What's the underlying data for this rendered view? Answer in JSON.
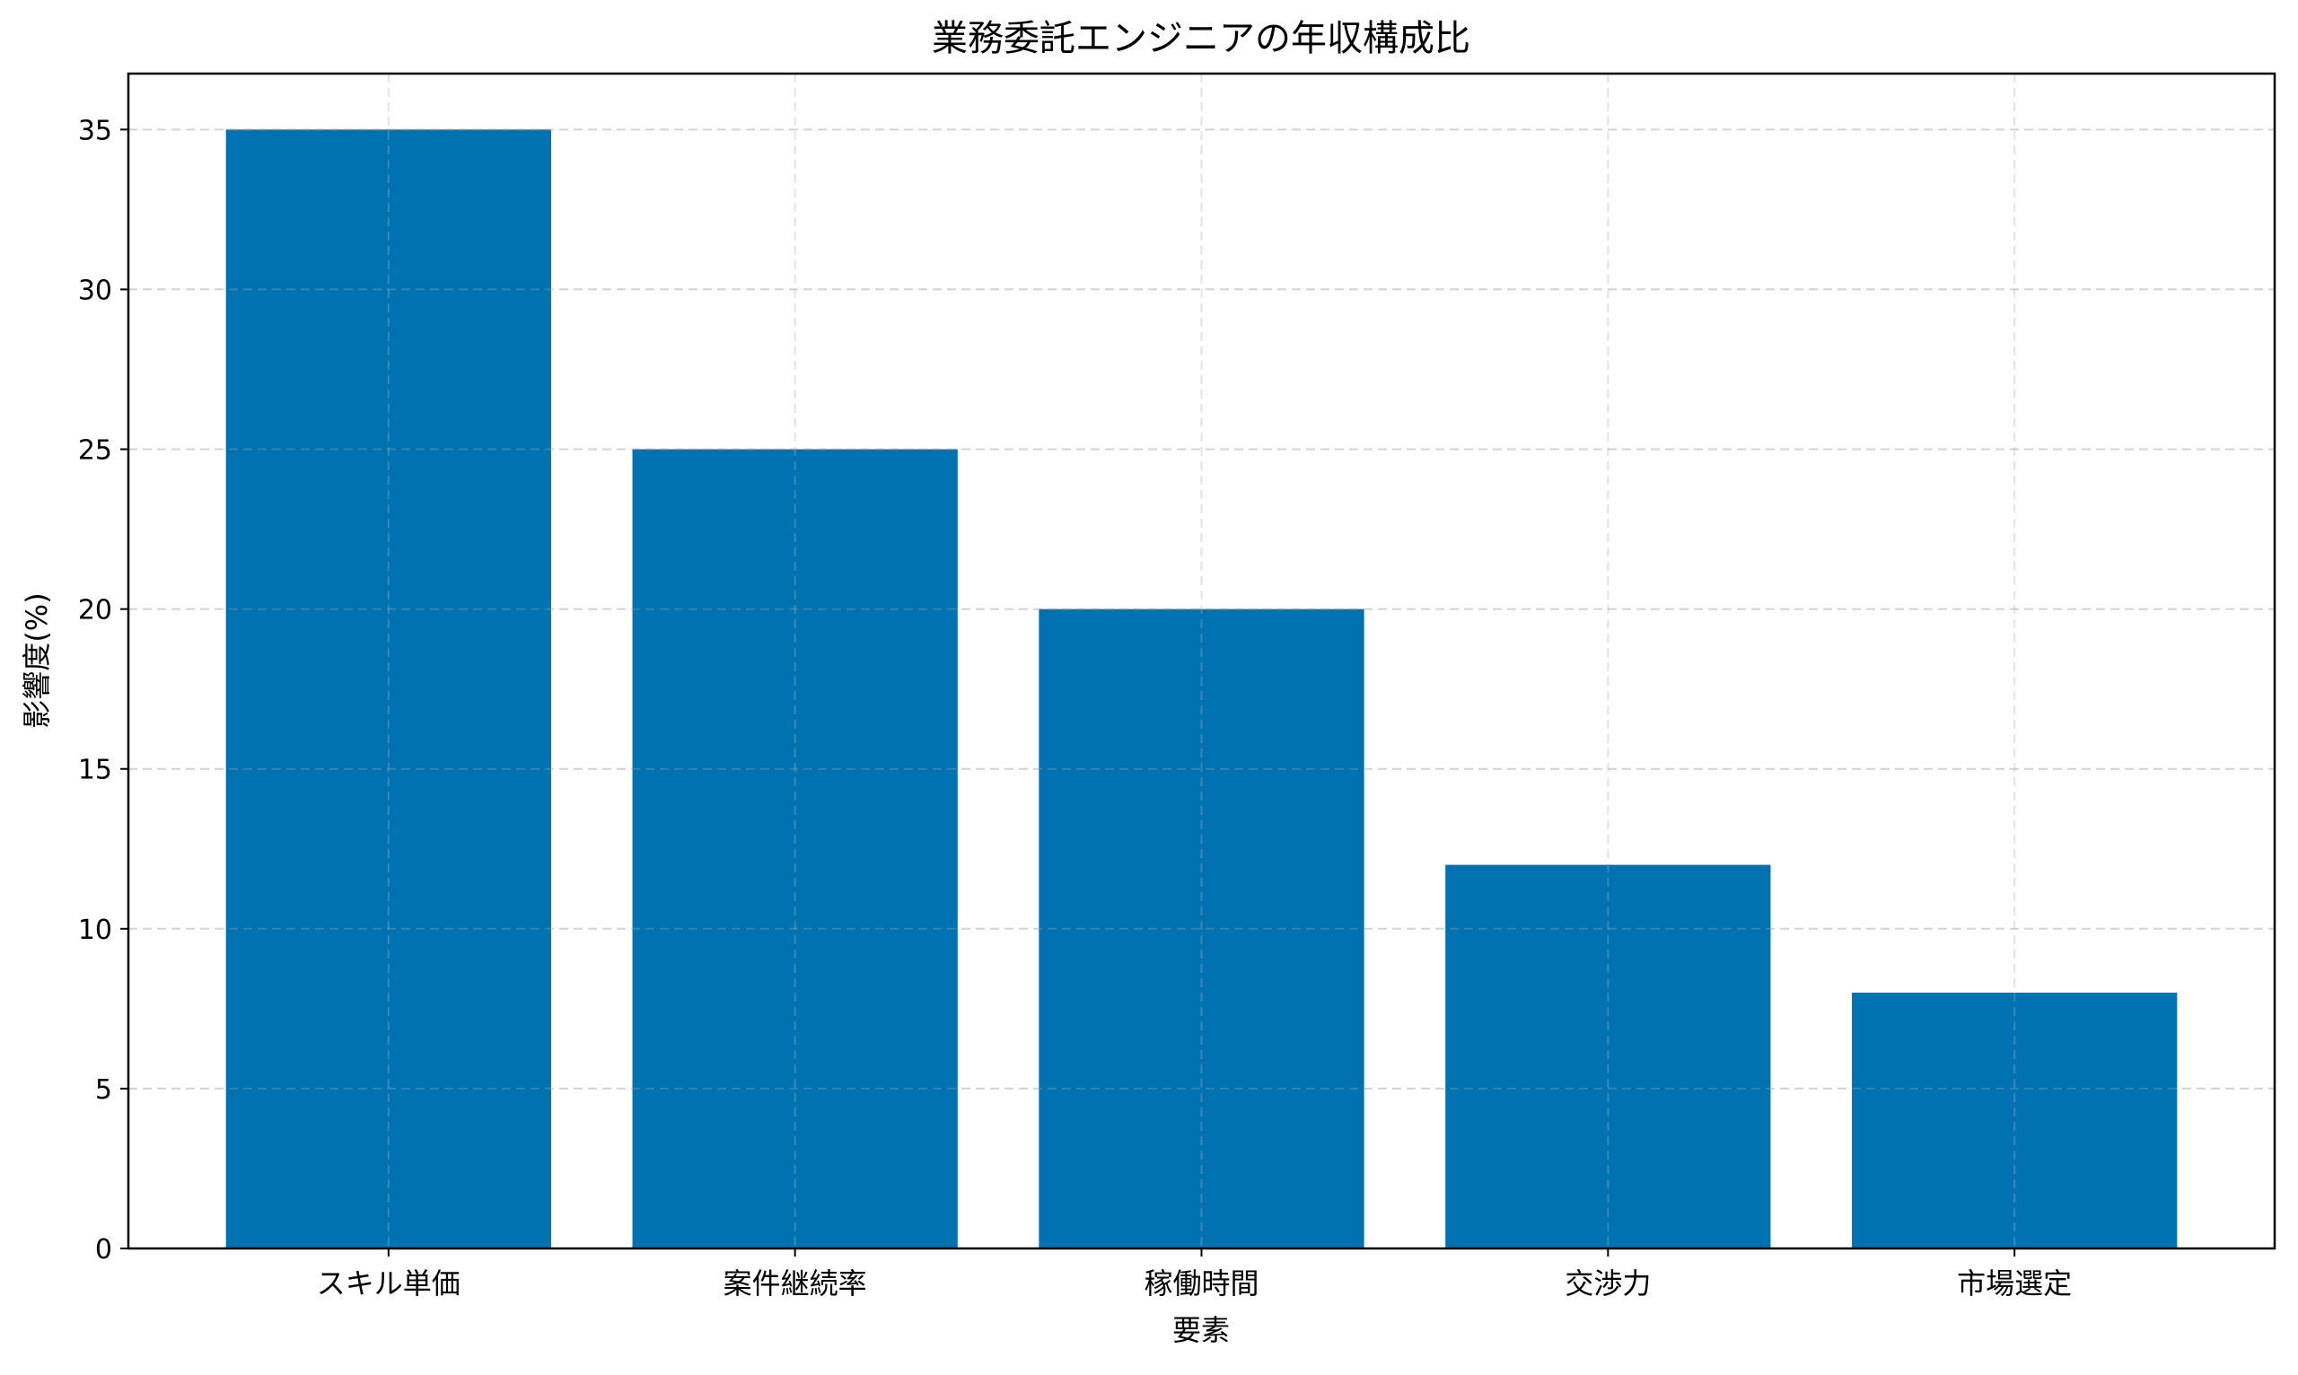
{
  "chart_data": {
    "type": "bar",
    "title": "業務委託エンジニアの年収構成比",
    "xlabel": "要素",
    "ylabel": "影響度(%)",
    "categories": [
      "スキル単価",
      "案件継続率",
      "稼働時間",
      "交渉力",
      "市場選定"
    ],
    "values": [
      35,
      25,
      20,
      12,
      8
    ],
    "ylim": [
      0,
      36.75
    ],
    "yticks": [
      0,
      5,
      10,
      15,
      20,
      25,
      30,
      35
    ],
    "grid": true,
    "bar_color": "#0072B2",
    "legend": "none"
  }
}
